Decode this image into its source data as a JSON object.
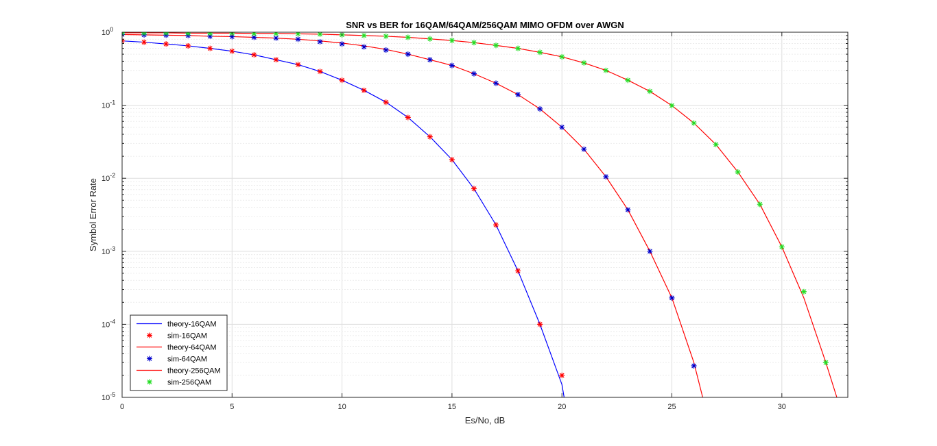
{
  "chart_data": {
    "type": "line",
    "title": "SNR vs BER for 16QAM/64QAM/256QAM MIMO OFDM over AWGN",
    "xlabel": "Es/No, dB",
    "ylabel": "Symbol Error Rate",
    "xlim": [
      0,
      33
    ],
    "ylim": [
      1e-05,
      1
    ],
    "yscale": "log",
    "grid": true,
    "legend_position": "bottom-left",
    "xticks": [
      "0",
      "5",
      "10",
      "15",
      "20",
      "25",
      "30"
    ],
    "yticks": [
      {
        "base": "10",
        "exp": "0"
      },
      {
        "base": "10",
        "exp": "-1"
      },
      {
        "base": "10",
        "exp": "-2"
      },
      {
        "base": "10",
        "exp": "-3"
      },
      {
        "base": "10",
        "exp": "-4"
      },
      {
        "base": "10",
        "exp": "-5"
      }
    ],
    "series": [
      {
        "name": "theory-16QAM",
        "style": "line",
        "color": "#0000ff",
        "x": [
          0,
          1,
          2,
          3,
          4,
          5,
          6,
          7,
          8,
          9,
          10,
          11,
          12,
          13,
          14,
          15,
          16,
          17,
          18,
          19,
          20,
          20.1
        ],
        "y": [
          0.76,
          0.73,
          0.69,
          0.65,
          0.6,
          0.55,
          0.49,
          0.42,
          0.36,
          0.29,
          0.22,
          0.16,
          0.11,
          0.068,
          0.037,
          0.018,
          0.0072,
          0.0023,
          0.00054,
          0.0001,
          1.5e-05,
          1e-05
        ]
      },
      {
        "name": "sim-16QAM",
        "style": "marker",
        "color": "#ff0000",
        "x": [
          0,
          1,
          2,
          3,
          4,
          5,
          6,
          7,
          8,
          9,
          10,
          11,
          12,
          13,
          14,
          15,
          16,
          17,
          18,
          19,
          20
        ],
        "y": [
          0.76,
          0.73,
          0.69,
          0.65,
          0.6,
          0.55,
          0.49,
          0.42,
          0.36,
          0.29,
          0.22,
          0.16,
          0.11,
          0.068,
          0.037,
          0.018,
          0.0072,
          0.0023,
          0.00054,
          0.0001,
          2e-05
        ]
      },
      {
        "name": "theory-64QAM",
        "style": "line",
        "color": "#ff0000",
        "x": [
          0,
          1,
          2,
          3,
          4,
          5,
          6,
          7,
          8,
          9,
          10,
          11,
          12,
          13,
          14,
          15,
          16,
          17,
          18,
          19,
          20,
          21,
          22,
          23,
          24,
          25,
          26,
          26.4
        ],
        "y": [
          0.93,
          0.92,
          0.91,
          0.9,
          0.88,
          0.87,
          0.85,
          0.83,
          0.8,
          0.76,
          0.71,
          0.65,
          0.58,
          0.5,
          0.42,
          0.35,
          0.27,
          0.2,
          0.14,
          0.089,
          0.05,
          0.025,
          0.0105,
          0.0037,
          0.001,
          0.00023,
          3e-05,
          1e-05
        ]
      },
      {
        "name": "sim-64QAM",
        "style": "marker",
        "color": "#0000cc",
        "x": [
          0,
          1,
          2,
          3,
          4,
          5,
          6,
          7,
          8,
          9,
          10,
          11,
          12,
          13,
          14,
          15,
          16,
          17,
          18,
          19,
          20,
          21,
          22,
          23,
          24,
          25,
          26
        ],
        "y": [
          0.93,
          0.92,
          0.91,
          0.9,
          0.88,
          0.87,
          0.85,
          0.83,
          0.8,
          0.74,
          0.69,
          0.63,
          0.57,
          0.5,
          0.42,
          0.35,
          0.27,
          0.2,
          0.14,
          0.089,
          0.05,
          0.025,
          0.0105,
          0.0037,
          0.001,
          0.00023,
          2.7e-05
        ]
      },
      {
        "name": "theory-256QAM",
        "style": "line",
        "color": "#ff0000",
        "x": [
          0,
          1,
          2,
          3,
          4,
          5,
          6,
          7,
          8,
          9,
          10,
          11,
          12,
          13,
          14,
          15,
          16,
          17,
          18,
          19,
          20,
          21,
          22,
          23,
          24,
          25,
          26,
          27,
          28,
          29,
          30,
          31,
          32,
          32.5
        ],
        "y": [
          0.98,
          0.98,
          0.98,
          0.97,
          0.97,
          0.97,
          0.96,
          0.96,
          0.95,
          0.94,
          0.92,
          0.9,
          0.88,
          0.85,
          0.81,
          0.77,
          0.72,
          0.66,
          0.6,
          0.53,
          0.46,
          0.38,
          0.3,
          0.22,
          0.155,
          0.099,
          0.057,
          0.029,
          0.0122,
          0.0044,
          0.00115,
          0.00023,
          3e-05,
          1e-05
        ]
      },
      {
        "name": "sim-256QAM",
        "style": "marker",
        "color": "#22dd22",
        "x": [
          0,
          1,
          2,
          3,
          4,
          5,
          6,
          7,
          8,
          9,
          10,
          11,
          12,
          13,
          14,
          15,
          16,
          17,
          18,
          19,
          20,
          21,
          22,
          23,
          24,
          25,
          26,
          27,
          28,
          29,
          30,
          31,
          32
        ],
        "y": [
          0.98,
          0.98,
          0.98,
          0.97,
          0.97,
          0.97,
          0.96,
          0.96,
          0.95,
          0.94,
          0.92,
          0.9,
          0.88,
          0.85,
          0.81,
          0.77,
          0.72,
          0.66,
          0.6,
          0.53,
          0.46,
          0.38,
          0.3,
          0.22,
          0.155,
          0.099,
          0.057,
          0.029,
          0.0122,
          0.0044,
          0.00115,
          0.00028,
          3e-05
        ]
      }
    ]
  }
}
